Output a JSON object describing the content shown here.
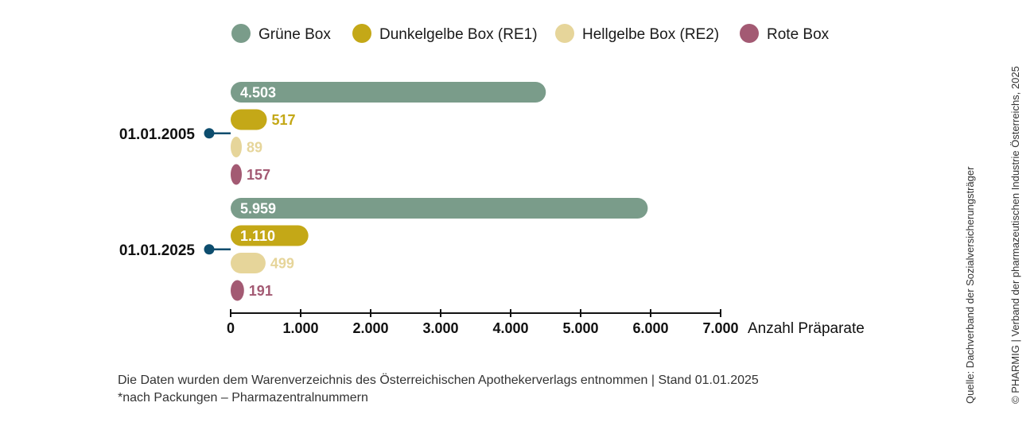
{
  "chart_data": {
    "type": "bar",
    "orientation": "horizontal",
    "categories": [
      "01.01.2005",
      "01.01.2025"
    ],
    "series": [
      {
        "name": "Grüne Box",
        "color": "#7a9c8a",
        "values": [
          4503,
          5959
        ],
        "labels": [
          "4.503",
          "5.959"
        ]
      },
      {
        "name": "Dunkelgelbe Box (RE1)",
        "color": "#c4a817",
        "values": [
          517,
          1110
        ],
        "labels": [
          "517",
          "1.110"
        ]
      },
      {
        "name": "Hellgelbe Box (RE2)",
        "color": "#e6d59a",
        "values": [
          89,
          499
        ],
        "labels": [
          "89",
          "499"
        ]
      },
      {
        "name": "Rote Box",
        "color": "#a35a73",
        "values": [
          157,
          191
        ],
        "labels": [
          "157",
          "191"
        ]
      }
    ],
    "xlabel": "Anzahl Präparate",
    "xlim": [
      0,
      7000
    ],
    "ticks": [
      0,
      1000,
      2000,
      3000,
      4000,
      5000,
      6000,
      7000
    ],
    "tick_labels": [
      "0",
      "1.000",
      "2.000",
      "3.000",
      "4.000",
      "5.000",
      "6.000",
      "7.000"
    ],
    "legend_position": "top",
    "grid": false,
    "marker_color": "#0d4d6e"
  },
  "footnotes": [
    "Die Daten wurden dem Warenverzeichnis des Österreichischen Apothekerverlags entnommen | Stand 01.01.2025",
    "*nach Packungen – Pharmazentralnummern"
  ],
  "source_note": "Quelle: Dachverband der Sozialversicherungsträger",
  "copyright_note": "© PHARMIG | Verband der pharmazeutischen Industrie Österreichs, 2025"
}
